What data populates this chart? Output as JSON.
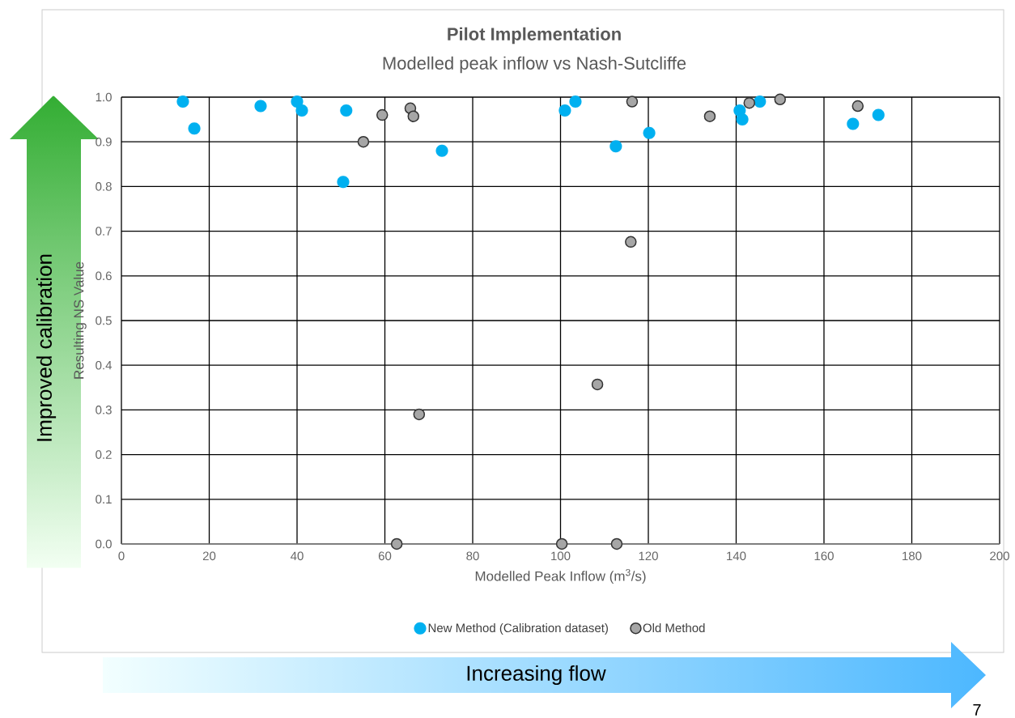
{
  "chart_data": {
    "type": "scatter",
    "title": "Pilot Implementation",
    "subtitle": "Modelled peak inflow vs Nash-Sutcliffe",
    "xlabel": "Modelled Peak Inflow (m$^{3}$/s)",
    "ylabel": "Resulting NS Value",
    "xlim": [
      0,
      200
    ],
    "ylim": [
      0,
      1
    ],
    "xticks": [
      0,
      20,
      40,
      60,
      80,
      100,
      120,
      140,
      160,
      180,
      200
    ],
    "yticks": [
      {
        "value": 0,
        "label": "0.0"
      },
      {
        "value": 0.1,
        "label": "0.1"
      },
      {
        "value": 0.2,
        "label": "0.2"
      },
      {
        "value": 0.3,
        "label": "0.3"
      },
      {
        "value": 0.4,
        "label": "0.4"
      },
      {
        "value": 0.5,
        "label": "0.5"
      },
      {
        "value": 0.6,
        "label": "0.6"
      },
      {
        "value": 0.7,
        "label": "0.7"
      },
      {
        "value": 0.8,
        "label": "0.8"
      },
      {
        "value": 0.9,
        "label": "0.9"
      },
      {
        "value": 1,
        "label": "1.0"
      }
    ],
    "grid": true,
    "legend": "bottom",
    "marker": "circle",
    "series": [
      {
        "name": "New Method (Calibration dataset)",
        "color": "#00b0f0",
        "x": [
          14.0,
          16.6,
          31.7,
          40.0,
          41.1,
          51.2,
          50.5,
          73.0,
          101.0,
          103.4,
          112.6,
          120.2,
          140.8,
          141.4,
          145.4,
          166.6,
          172.4
        ],
        "values": [
          0.99,
          0.93,
          0.98,
          0.99,
          0.97,
          0.97,
          0.81,
          0.88,
          0.97,
          0.99,
          0.89,
          0.92,
          0.97,
          0.95,
          0.99,
          0.94,
          0.96
        ]
      },
      {
        "name": "Old Method",
        "color": "#a6a6a6",
        "x": [
          55.1,
          59.4,
          65.8,
          66.5,
          67.8,
          62.7,
          116.3,
          116.0,
          108.4,
          100.3,
          112.8,
          134.0,
          143.0,
          150.0,
          167.7
        ],
        "values": [
          0.9,
          0.96,
          0.975,
          0.957,
          0.29,
          0.0,
          0.99,
          0.676,
          0.357,
          0.0,
          0.0,
          0.957,
          0.987,
          0.995,
          0.98
        ]
      }
    ],
    "annotations": [
      "Improved calibration",
      "Increasing flow",
      "7"
    ]
  }
}
